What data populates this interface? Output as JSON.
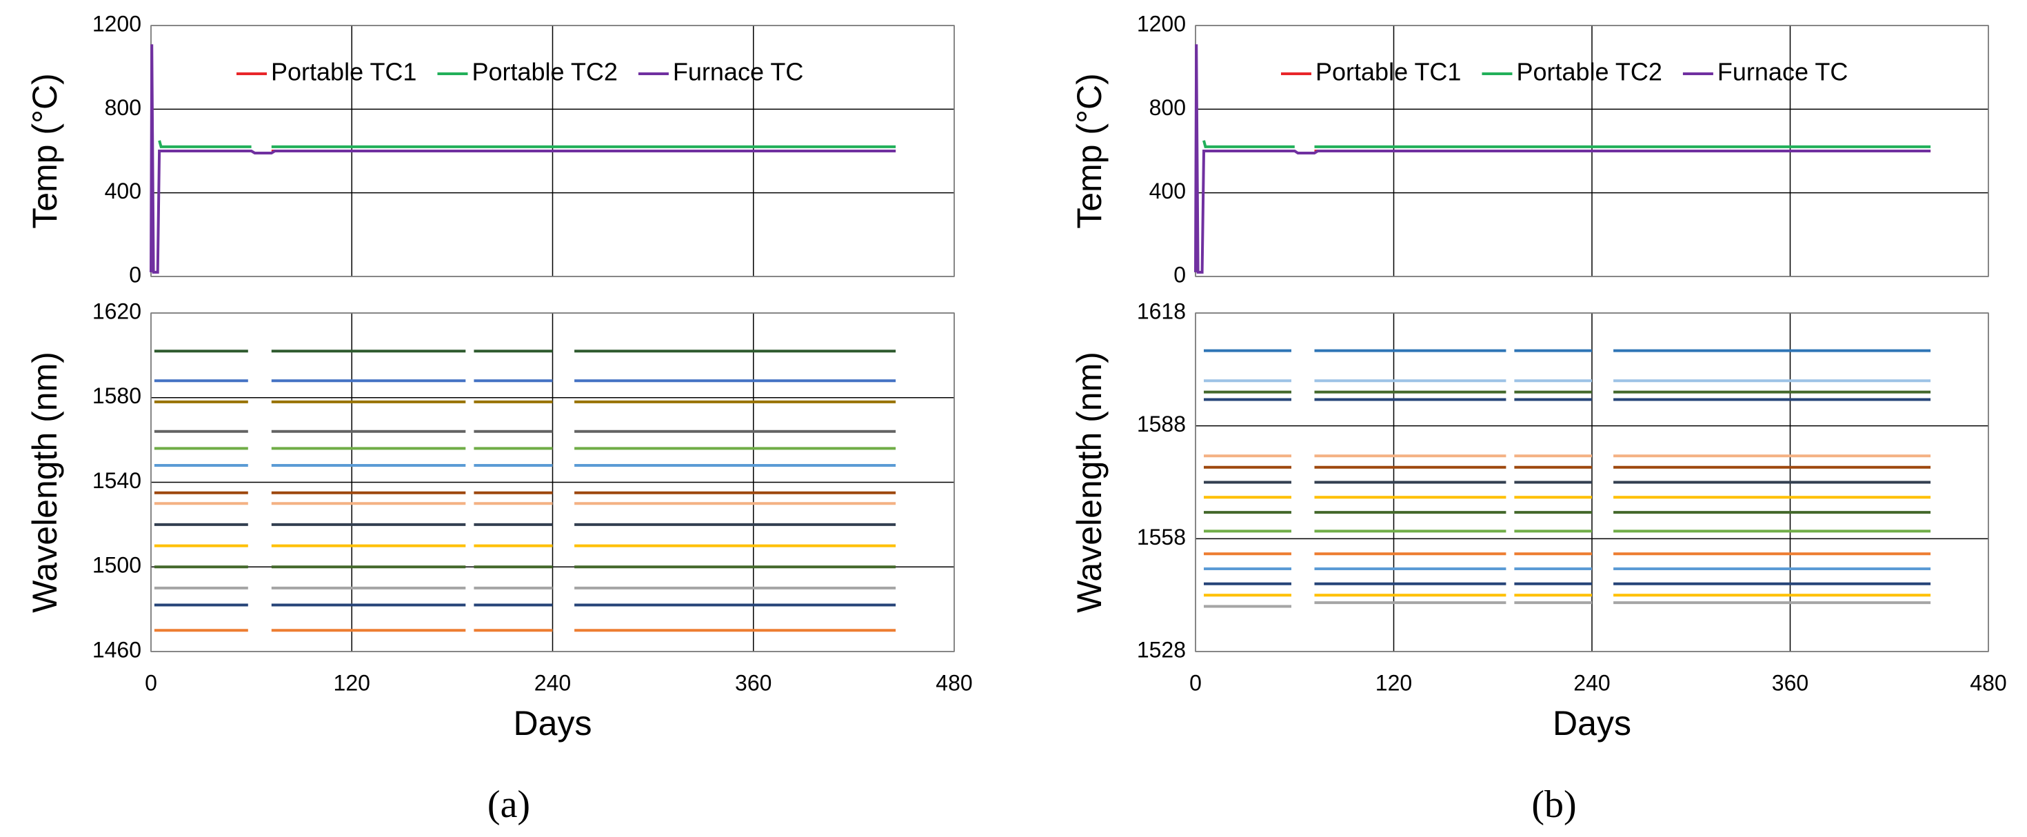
{
  "panel_labels": [
    "(a)",
    "(b)"
  ],
  "chart_data": [
    {
      "type": "line",
      "ylabel": "Temp (°C)",
      "xlim": [
        0,
        480
      ],
      "xticks": [
        0,
        120,
        240,
        360,
        480
      ],
      "show_xtick_labels": false,
      "ylim": [
        0,
        1200
      ],
      "yticks": [
        0,
        400,
        800,
        1200
      ],
      "grid": true,
      "legend": "top",
      "series": [
        {
          "name": "Portable TC1",
          "color": "#e8262a",
          "x": [
            5,
            60,
            66,
            72,
            445
          ],
          "values": [
            600,
            600,
            null,
            600,
            600
          ]
        },
        {
          "name": "Portable TC2",
          "color": "#22b05a",
          "x": [
            5,
            6,
            60,
            66,
            72,
            445
          ],
          "values": [
            650,
            620,
            620,
            null,
            620,
            620
          ]
        },
        {
          "name": "Furnace TC",
          "color": "#7030a0",
          "x": [
            0,
            0.5,
            1.5,
            4,
            5,
            60,
            62,
            72,
            74,
            445
          ],
          "values": [
            20,
            1110,
            20,
            20,
            600,
            600,
            590,
            590,
            600,
            600
          ]
        }
      ]
    },
    {
      "type": "line",
      "ylabel": "Wavelength (nm)",
      "xlabel": "Days",
      "xlim": [
        0,
        480
      ],
      "xticks": [
        0,
        120,
        240,
        360,
        480
      ],
      "show_xtick_labels": true,
      "ylim": [
        1460,
        1620
      ],
      "yticks": [
        1460,
        1500,
        1540,
        1580,
        1620
      ],
      "grid": true,
      "series": [
        {
          "color": "#ed7d31",
          "x": [
            2,
            58,
            65,
            72,
            188,
            190,
            193,
            240,
            246,
            253,
            445
          ],
          "values": [
            1470,
            1470,
            null,
            1470,
            1470,
            null,
            1470,
            1470,
            null,
            1470,
            1470
          ]
        },
        {
          "color": "#264478",
          "x": [
            2,
            58,
            65,
            72,
            188,
            190,
            193,
            240,
            246,
            253,
            445
          ],
          "values": [
            1482,
            1482,
            null,
            1482,
            1482,
            null,
            1482,
            1482,
            null,
            1482,
            1482
          ]
        },
        {
          "color": "#a5a5a5",
          "x": [
            2,
            58,
            65,
            72,
            188,
            190,
            193,
            240,
            246,
            253,
            445
          ],
          "values": [
            1490,
            1490,
            null,
            1490,
            1490,
            null,
            1490,
            1490,
            null,
            1490,
            1490
          ]
        },
        {
          "color": "#43682b",
          "x": [
            2,
            58,
            65,
            72,
            188,
            190,
            193,
            240,
            246,
            253,
            445
          ],
          "values": [
            1500,
            1500,
            null,
            1500,
            1500,
            null,
            1500,
            1500,
            null,
            1500,
            1500
          ]
        },
        {
          "color": "#ffc000",
          "x": [
            2,
            58,
            65,
            72,
            188,
            190,
            193,
            240,
            246,
            253,
            445
          ],
          "values": [
            1510,
            1510,
            null,
            1510,
            1510,
            null,
            1510,
            1510,
            null,
            1510,
            1510
          ]
        },
        {
          "color": "#333f50",
          "x": [
            2,
            58,
            65,
            72,
            188,
            190,
            193,
            240,
            246,
            253,
            445
          ],
          "values": [
            1520,
            1520,
            null,
            1520,
            1520,
            null,
            1520,
            1520,
            null,
            1520,
            1520
          ]
        },
        {
          "color": "#f4b183",
          "x": [
            2,
            58,
            65,
            72,
            188,
            190,
            193,
            240,
            246,
            253,
            445
          ],
          "values": [
            1530,
            1530,
            null,
            1530,
            1530,
            null,
            1530,
            1530,
            null,
            1530,
            1530
          ]
        },
        {
          "color": "#9e480e",
          "x": [
            2,
            58,
            65,
            72,
            188,
            190,
            193,
            240,
            246,
            253,
            445
          ],
          "values": [
            1535,
            1535,
            null,
            1535,
            1535,
            null,
            1535,
            1535,
            null,
            1535,
            1535
          ]
        },
        {
          "color": "#5b9bd5",
          "x": [
            2,
            58,
            65,
            72,
            188,
            190,
            193,
            240,
            246,
            253,
            445
          ],
          "values": [
            1548,
            1548,
            null,
            1548,
            1548,
            null,
            1548,
            1548,
            null,
            1548,
            1548
          ]
        },
        {
          "color": "#70ad47",
          "x": [
            2,
            58,
            65,
            72,
            188,
            190,
            193,
            240,
            246,
            253,
            445
          ],
          "values": [
            1556,
            1556,
            null,
            1556,
            1556,
            null,
            1556,
            1556,
            null,
            1556,
            1556
          ]
        },
        {
          "color": "#636363",
          "x": [
            2,
            58,
            65,
            72,
            188,
            190,
            193,
            240,
            246,
            253,
            445
          ],
          "values": [
            1564,
            1564,
            null,
            1564,
            1564,
            null,
            1564,
            1564,
            null,
            1564,
            1564
          ]
        },
        {
          "color": "#997300",
          "x": [
            2,
            58,
            65,
            72,
            188,
            190,
            193,
            240,
            246,
            253,
            445
          ],
          "values": [
            1578,
            1578,
            null,
            1578,
            1578,
            null,
            1578,
            1578,
            null,
            1578,
            1578
          ]
        },
        {
          "color": "#4472c4",
          "x": [
            2,
            58,
            65,
            72,
            188,
            190,
            193,
            240,
            246,
            253,
            445
          ],
          "values": [
            1588,
            1588,
            null,
            1588,
            1588,
            null,
            1588,
            1588,
            null,
            1588,
            1588
          ]
        },
        {
          "color": "#2e5a2e",
          "x": [
            2,
            58,
            65,
            72,
            188,
            190,
            193,
            240,
            246,
            253,
            445
          ],
          "values": [
            1602,
            1602,
            null,
            1602,
            1602,
            null,
            1602,
            1602,
            null,
            1602,
            1602
          ]
        }
      ]
    },
    {
      "type": "line",
      "ylabel": "Temp (°C)",
      "xlim": [
        0,
        480
      ],
      "xticks": [
        0,
        120,
        240,
        360,
        480
      ],
      "show_xtick_labels": false,
      "ylim": [
        0,
        1200
      ],
      "yticks": [
        0,
        400,
        800,
        1200
      ],
      "grid": true,
      "legend": "top",
      "series": [
        {
          "name": "Portable TC1",
          "color": "#e8262a",
          "x": [
            5,
            60,
            66,
            72,
            445
          ],
          "values": [
            600,
            600,
            null,
            600,
            600
          ]
        },
        {
          "name": "Portable TC2",
          "color": "#22b05a",
          "x": [
            5,
            6,
            60,
            66,
            72,
            445
          ],
          "values": [
            650,
            620,
            620,
            null,
            620,
            620
          ]
        },
        {
          "name": "Furnace TC",
          "color": "#7030a0",
          "x": [
            0,
            0.5,
            1.5,
            4,
            5,
            60,
            62,
            72,
            74,
            445
          ],
          "values": [
            20,
            1110,
            20,
            20,
            600,
            600,
            590,
            590,
            600,
            600
          ]
        }
      ]
    },
    {
      "type": "line",
      "ylabel": "Wavelength (nm)",
      "xlabel": "Days",
      "xlim": [
        0,
        480
      ],
      "xticks": [
        0,
        120,
        240,
        360,
        480
      ],
      "show_xtick_labels": true,
      "ylim": [
        1528,
        1618
      ],
      "yticks": [
        1528,
        1558,
        1588,
        1618
      ],
      "grid": true,
      "series": [
        {
          "color": "#a5a5a5",
          "x": [
            5,
            58,
            65,
            72,
            188,
            190,
            193,
            240,
            246,
            253,
            445
          ],
          "values": [
            1540,
            1540,
            null,
            1541,
            1541,
            null,
            1541,
            1541,
            null,
            1541,
            1541
          ]
        },
        {
          "color": "#ffc000",
          "x": [
            5,
            58,
            65,
            72,
            188,
            190,
            193,
            240,
            246,
            253,
            445
          ],
          "values": [
            1543,
            1543,
            null,
            1543,
            1543,
            null,
            1543,
            1543,
            null,
            1543,
            1543
          ]
        },
        {
          "color": "#264478",
          "x": [
            5,
            58,
            65,
            72,
            188,
            190,
            193,
            240,
            246,
            253,
            445
          ],
          "values": [
            1546,
            1546,
            null,
            1546,
            1546,
            null,
            1546,
            1546,
            null,
            1546,
            1546
          ]
        },
        {
          "color": "#5b9bd5",
          "x": [
            5,
            58,
            65,
            72,
            188,
            190,
            193,
            240,
            246,
            253,
            445
          ],
          "values": [
            1550,
            1550,
            null,
            1550,
            1550,
            null,
            1550,
            1550,
            null,
            1550,
            1550
          ]
        },
        {
          "color": "#ed7d31",
          "x": [
            5,
            58,
            65,
            72,
            188,
            190,
            193,
            240,
            246,
            253,
            445
          ],
          "values": [
            1554,
            1554,
            null,
            1554,
            1554,
            null,
            1554,
            1554,
            null,
            1554,
            1554
          ]
        },
        {
          "color": "#70ad47",
          "x": [
            5,
            58,
            65,
            72,
            188,
            190,
            193,
            240,
            246,
            253,
            445
          ],
          "values": [
            1560,
            1560,
            null,
            1560,
            1560,
            null,
            1560,
            1560,
            null,
            1560,
            1560
          ]
        },
        {
          "color": "#43682b",
          "x": [
            5,
            58,
            65,
            72,
            188,
            190,
            193,
            240,
            246,
            253,
            445
          ],
          "values": [
            1565,
            1565,
            null,
            1565,
            1565,
            null,
            1565,
            1565,
            null,
            1565,
            1565
          ]
        },
        {
          "color": "#ffc000",
          "x": [
            5,
            58,
            65,
            72,
            188,
            190,
            193,
            240,
            246,
            253,
            445
          ],
          "values": [
            1569,
            1569,
            null,
            1569,
            1569,
            null,
            1569,
            1569,
            null,
            1569,
            1569
          ]
        },
        {
          "color": "#333f50",
          "x": [
            5,
            58,
            65,
            72,
            188,
            190,
            193,
            240,
            246,
            253,
            445
          ],
          "values": [
            1573,
            1573,
            null,
            1573,
            1573,
            null,
            1573,
            1573,
            null,
            1573,
            1573
          ]
        },
        {
          "color": "#9e480e",
          "x": [
            5,
            58,
            65,
            72,
            188,
            190,
            193,
            240,
            246,
            253,
            445
          ],
          "values": [
            1577,
            1577,
            null,
            1577,
            1577,
            null,
            1577,
            1577,
            null,
            1577,
            1577
          ]
        },
        {
          "color": "#f4b183",
          "x": [
            5,
            58,
            65,
            72,
            188,
            190,
            193,
            240,
            246,
            253,
            445
          ],
          "values": [
            1580,
            1580,
            null,
            1580,
            1580,
            null,
            1580,
            1580,
            null,
            1580,
            1580
          ]
        },
        {
          "color": "#264478",
          "x": [
            5,
            58,
            65,
            72,
            188,
            190,
            193,
            240,
            246,
            253,
            445
          ],
          "values": [
            1595,
            1595,
            null,
            1595,
            1595,
            null,
            1595,
            1595,
            null,
            1595,
            1595
          ]
        },
        {
          "color": "#43682b",
          "x": [
            5,
            58,
            65,
            72,
            188,
            190,
            193,
            240,
            246,
            253,
            445
          ],
          "values": [
            1597,
            1597,
            null,
            1597,
            1597,
            null,
            1597,
            1597,
            null,
            1597,
            1597
          ]
        },
        {
          "color": "#9dc3e6",
          "x": [
            5,
            58,
            65,
            72,
            188,
            190,
            193,
            240,
            246,
            253,
            445
          ],
          "values": [
            1600,
            1600,
            null,
            1600,
            1600,
            null,
            1600,
            1600,
            null,
            1600,
            1600
          ]
        },
        {
          "color": "#2e75b6",
          "x": [
            5,
            58,
            65,
            72,
            188,
            190,
            193,
            240,
            246,
            253,
            445
          ],
          "values": [
            1608,
            1608,
            null,
            1608,
            1608,
            null,
            1608,
            1608,
            null,
            1608,
            1608
          ]
        }
      ]
    }
  ]
}
